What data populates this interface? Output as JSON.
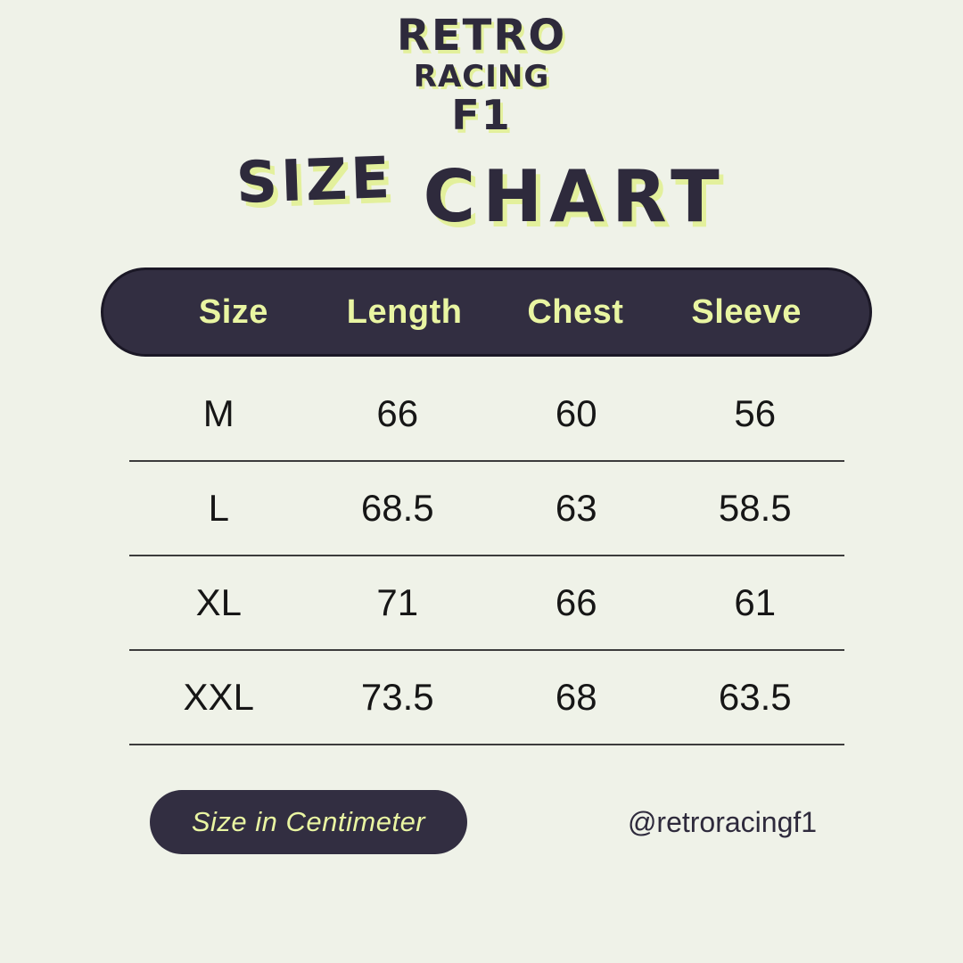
{
  "brand": {
    "line1": "RETRO",
    "line2": "RACING",
    "line3": "F1"
  },
  "title": {
    "word1": "SIZE",
    "word2": "CHART"
  },
  "table": {
    "columns": [
      "Size",
      "Length",
      "Chest",
      "Sleeve"
    ],
    "rows": [
      [
        "M",
        "66",
        "60",
        "56"
      ],
      [
        "L",
        "68.5",
        "63",
        "58.5"
      ],
      [
        "XL",
        "71",
        "66",
        "61"
      ],
      [
        "XXL",
        "73.5",
        "68",
        "63.5"
      ]
    ]
  },
  "footer": {
    "unit_label": "Size in Centimeter",
    "handle": "@retroracingf1"
  },
  "colors": {
    "background": "#eff2e8",
    "panel_dark": "#322e41",
    "panel_border": "#1b1826",
    "accent_yellow": "#e9f5a2",
    "shadow_yellow": "#e3f09c",
    "body_text": "#161616",
    "divider": "#3c3c3c",
    "title_dark": "#2e2a3c"
  },
  "chart_data": {
    "type": "table",
    "title": "SIZE CHART",
    "columns": [
      "Size",
      "Length",
      "Chest",
      "Sleeve"
    ],
    "rows": [
      [
        "M",
        66,
        60,
        56
      ],
      [
        "L",
        68.5,
        63,
        58.5
      ],
      [
        "XL",
        71,
        66,
        61
      ],
      [
        "XXL",
        73.5,
        68,
        63.5
      ]
    ],
    "unit": "Centimeter"
  }
}
